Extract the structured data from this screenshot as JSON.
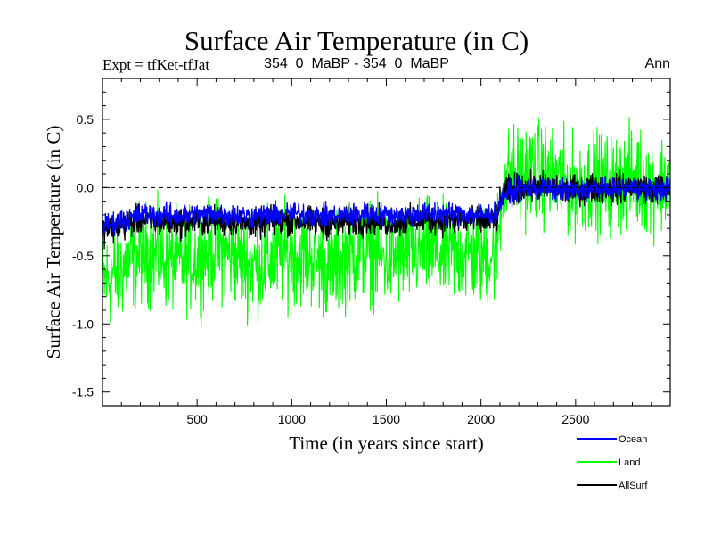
{
  "chart_data": {
    "type": "line",
    "title": "Surface Air Temperature (in C)",
    "subtitle": "354_0_MaBP - 354_0_MaBP",
    "experiment": "Expt = tfKet-tfJat",
    "period": "Ann",
    "xlabel": "Time (in years since start)",
    "ylabel": "Surface Air Temperature (in C)",
    "xlim": [
      0,
      3000
    ],
    "ylim": [
      -1.6,
      0.8
    ],
    "xticks": [
      500,
      1000,
      1500,
      2000,
      2500
    ],
    "xtick_labels": [
      "500",
      "1000",
      "1500",
      "2000",
      "2500"
    ],
    "yticks": [
      -1.5,
      -1.0,
      -0.5,
      0.0,
      0.5
    ],
    "ytick_labels": [
      "-1.5",
      "-1.0",
      "-0.5",
      "0.0",
      "0.5"
    ],
    "zero_line": true,
    "legend_position": "bottom-right",
    "series": [
      {
        "name": "Land",
        "color": "#00ff00",
        "x": [
          0,
          100,
          200,
          300,
          400,
          500,
          600,
          700,
          800,
          900,
          1000,
          1100,
          1200,
          1300,
          1400,
          1500,
          1600,
          1700,
          1800,
          1900,
          2000,
          2080,
          2120,
          2200,
          2300,
          2400,
          2500,
          2600,
          2700,
          2800,
          2900,
          3000
        ],
        "values": [
          -0.7,
          -0.6,
          -0.48,
          -0.5,
          -0.55,
          -0.52,
          -0.45,
          -0.5,
          -0.58,
          -0.52,
          -0.48,
          -0.5,
          -0.6,
          -0.5,
          -0.46,
          -0.52,
          -0.5,
          -0.45,
          -0.5,
          -0.48,
          -0.5,
          -0.48,
          0.05,
          0.1,
          0.12,
          0.05,
          0.0,
          0.05,
          0.02,
          0.08,
          0.02,
          0.05
        ],
        "noise_amplitude": 0.3
      },
      {
        "name": "AllSurf",
        "color": "#000000",
        "x": [
          0,
          100,
          200,
          300,
          400,
          500,
          600,
          700,
          800,
          900,
          1000,
          1100,
          1200,
          1300,
          1400,
          1500,
          1600,
          1700,
          1800,
          1900,
          2000,
          2080,
          2120,
          2200,
          2300,
          2400,
          2500,
          2600,
          2700,
          2800,
          2900,
          3000
        ],
        "values": [
          -0.32,
          -0.28,
          -0.24,
          -0.25,
          -0.26,
          -0.25,
          -0.24,
          -0.25,
          -0.27,
          -0.25,
          -0.24,
          -0.25,
          -0.27,
          -0.25,
          -0.24,
          -0.25,
          -0.25,
          -0.23,
          -0.24,
          -0.24,
          -0.25,
          -0.24,
          -0.03,
          0.0,
          0.01,
          -0.01,
          -0.02,
          0.0,
          -0.01,
          0.01,
          -0.01,
          0.0
        ],
        "noise_amplitude": 0.09
      },
      {
        "name": "Ocean",
        "color": "#0000ff",
        "x": [
          0,
          100,
          200,
          300,
          400,
          500,
          600,
          700,
          800,
          900,
          1000,
          1100,
          1200,
          1300,
          1400,
          1500,
          1600,
          1700,
          1800,
          1900,
          2000,
          2080,
          2120,
          2200,
          2300,
          2400,
          2500,
          2600,
          2700,
          2800,
          2900,
          3000
        ],
        "values": [
          -0.28,
          -0.24,
          -0.2,
          -0.2,
          -0.21,
          -0.2,
          -0.19,
          -0.2,
          -0.21,
          -0.2,
          -0.19,
          -0.2,
          -0.21,
          -0.2,
          -0.19,
          -0.2,
          -0.2,
          -0.19,
          -0.19,
          -0.19,
          -0.2,
          -0.19,
          -0.05,
          -0.02,
          0.0,
          -0.02,
          -0.03,
          -0.01,
          -0.02,
          0.0,
          -0.02,
          -0.01
        ],
        "noise_amplitude": 0.07
      }
    ],
    "legend": [
      {
        "name": "Ocean",
        "color": "#0000ff"
      },
      {
        "name": "Land",
        "color": "#00ff00"
      },
      {
        "name": "AllSurf",
        "color": "#000000"
      }
    ]
  }
}
